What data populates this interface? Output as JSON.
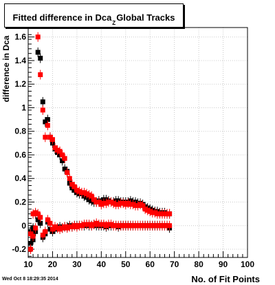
{
  "title": {
    "before": "Fitted difference in Dca",
    "sub": "Z",
    "after": "Global Tracks"
  },
  "ylabel": "difference in Dca",
  "xlabel": "No. of Fit Points",
  "datestamp": "Wed Oct  8 18:29:35 2014",
  "colors": {
    "series_a": "#000000",
    "series_b": "#ff0000",
    "grid": "#c8c8c8",
    "axis": "#000000"
  },
  "chart_data": {
    "type": "scatter",
    "title": "Fitted difference in Dca_Z Global Tracks",
    "xlabel": "No. of Fit Points",
    "ylabel": "difference in Dca",
    "xlim": [
      10,
      100
    ],
    "ylim": [
      -0.27,
      1.68
    ],
    "x_ticks": [
      10,
      20,
      30,
      40,
      50,
      60,
      70,
      80,
      90,
      100
    ],
    "y_ticks": [
      -0.2,
      0,
      0.2,
      0.4,
      0.6,
      0.8,
      1,
      1.2,
      1.4,
      1.6
    ],
    "grid": true,
    "legend": "none",
    "series": [
      {
        "color": "#000000",
        "points": [
          [
            11,
            -0.05
          ],
          [
            12,
            -0.02
          ],
          [
            13,
            -0.05
          ],
          [
            14,
            1.47
          ],
          [
            15,
            1.42
          ],
          [
            16,
            1.05
          ],
          [
            17,
            0.88
          ],
          [
            18,
            0.9
          ],
          [
            19,
            0.75
          ],
          [
            20,
            0.7
          ],
          [
            21,
            0.65
          ],
          [
            22,
            0.62
          ],
          [
            23,
            0.6
          ],
          [
            24,
            0.55
          ],
          [
            25,
            0.48
          ],
          [
            26,
            0.46
          ],
          [
            27,
            0.36
          ],
          [
            28,
            0.32
          ],
          [
            29,
            0.3
          ],
          [
            30,
            0.28
          ],
          [
            31,
            0.27
          ],
          [
            32,
            0.27
          ],
          [
            33,
            0.25
          ],
          [
            34,
            0.24
          ],
          [
            35,
            0.22
          ],
          [
            36,
            0.21
          ],
          [
            37,
            0.2
          ],
          [
            38,
            0.2
          ],
          [
            39,
            0.21
          ],
          [
            40,
            0.2
          ],
          [
            41,
            0.22
          ],
          [
            42,
            0.22
          ],
          [
            43,
            0.21
          ],
          [
            44,
            0.2
          ],
          [
            45,
            0.2
          ],
          [
            46,
            0.21
          ],
          [
            47,
            0.21
          ],
          [
            48,
            0.2
          ],
          [
            49,
            0.2
          ],
          [
            50,
            0.2
          ],
          [
            51,
            0.2
          ],
          [
            52,
            0.21
          ],
          [
            53,
            0.2
          ],
          [
            54,
            0.2
          ],
          [
            55,
            0.19
          ],
          [
            56,
            0.19
          ],
          [
            57,
            0.18
          ],
          [
            58,
            0.16
          ],
          [
            59,
            0.15
          ],
          [
            60,
            0.14
          ],
          [
            61,
            0.13
          ],
          [
            62,
            0.12
          ],
          [
            63,
            0.12
          ],
          [
            64,
            0.11
          ],
          [
            65,
            0.11
          ],
          [
            66,
            0.11
          ],
          [
            67,
            0.1
          ],
          [
            68,
            0.1
          ],
          [
            11,
            -0.15
          ],
          [
            12,
            -0.12
          ],
          [
            13,
            0.1
          ],
          [
            14,
            0.05
          ],
          [
            15,
            0.02
          ],
          [
            16,
            -0.1
          ],
          [
            17,
            -0.07
          ],
          [
            18,
            0.03
          ],
          [
            19,
            -0.03
          ],
          [
            20,
            -0.05
          ],
          [
            21,
            -0.03
          ],
          [
            22,
            -0.02
          ],
          [
            23,
            -0.01
          ],
          [
            24,
            -0.02
          ],
          [
            25,
            -0.01
          ],
          [
            26,
            -0.01
          ],
          [
            27,
            0.0
          ],
          [
            28,
            -0.01
          ],
          [
            29,
            0.0
          ],
          [
            30,
            0.0
          ],
          [
            31,
            0.0
          ],
          [
            32,
            0.0
          ],
          [
            33,
            0.0
          ],
          [
            34,
            0.01
          ],
          [
            35,
            0.0
          ],
          [
            36,
            0.0
          ],
          [
            37,
            0.01
          ],
          [
            38,
            0.0
          ],
          [
            39,
            0.0
          ],
          [
            40,
            0.0
          ],
          [
            41,
            0.0
          ],
          [
            42,
            -0.01
          ],
          [
            43,
            0.0
          ],
          [
            44,
            0.0
          ],
          [
            45,
            0.0
          ],
          [
            46,
            0.0
          ],
          [
            47,
            -0.01
          ],
          [
            48,
            0.0
          ],
          [
            49,
            0.0
          ],
          [
            50,
            0.0
          ],
          [
            51,
            0.0
          ],
          [
            52,
            0.0
          ],
          [
            53,
            0.0
          ],
          [
            54,
            0.0
          ],
          [
            55,
            0.0
          ],
          [
            56,
            0.0
          ],
          [
            57,
            0.0
          ],
          [
            58,
            0.0
          ],
          [
            59,
            0.0
          ],
          [
            60,
            0.0
          ],
          [
            61,
            0.0
          ],
          [
            62,
            0.0
          ],
          [
            63,
            0.0
          ],
          [
            64,
            0.0
          ],
          [
            65,
            0.0
          ],
          [
            66,
            0.0
          ],
          [
            67,
            0.0
          ],
          [
            68,
            -0.02
          ]
        ]
      },
      {
        "color": "#ff0000",
        "points": [
          [
            11,
            -0.07
          ],
          [
            12,
            -0.09
          ],
          [
            13,
            0.11
          ],
          [
            14,
            1.6
          ],
          [
            15,
            1.28
          ],
          [
            16,
            0.98
          ],
          [
            17,
            0.75
          ],
          [
            18,
            0.85
          ],
          [
            19,
            0.75
          ],
          [
            20,
            0.73
          ],
          [
            21,
            0.66
          ],
          [
            22,
            0.64
          ],
          [
            23,
            0.63
          ],
          [
            24,
            0.6
          ],
          [
            25,
            0.57
          ],
          [
            26,
            0.45
          ],
          [
            27,
            0.4
          ],
          [
            28,
            0.35
          ],
          [
            29,
            0.33
          ],
          [
            30,
            0.3
          ],
          [
            31,
            0.29
          ],
          [
            32,
            0.28
          ],
          [
            33,
            0.28
          ],
          [
            34,
            0.27
          ],
          [
            35,
            0.26
          ],
          [
            36,
            0.25
          ],
          [
            37,
            0.22
          ],
          [
            38,
            0.2
          ],
          [
            39,
            0.2
          ],
          [
            40,
            0.18
          ],
          [
            41,
            0.19
          ],
          [
            42,
            0.19
          ],
          [
            43,
            0.2
          ],
          [
            44,
            0.2
          ],
          [
            45,
            0.19
          ],
          [
            46,
            0.18
          ],
          [
            47,
            0.18
          ],
          [
            48,
            0.19
          ],
          [
            49,
            0.19
          ],
          [
            50,
            0.18
          ],
          [
            51,
            0.19
          ],
          [
            52,
            0.18
          ],
          [
            53,
            0.18
          ],
          [
            54,
            0.17
          ],
          [
            55,
            0.17
          ],
          [
            56,
            0.18
          ],
          [
            57,
            0.17
          ],
          [
            58,
            0.14
          ],
          [
            59,
            0.13
          ],
          [
            60,
            0.12
          ],
          [
            61,
            0.11
          ],
          [
            62,
            0.11
          ],
          [
            63,
            0.1
          ],
          [
            64,
            0.1
          ],
          [
            65,
            0.1
          ],
          [
            66,
            0.1
          ],
          [
            67,
            0.1
          ],
          [
            68,
            0.1
          ],
          [
            11,
            -0.2
          ],
          [
            12,
            0.1
          ],
          [
            13,
            -0.02
          ],
          [
            14,
            0.1
          ],
          [
            15,
            0.07
          ],
          [
            16,
            -0.08
          ],
          [
            17,
            -0.05
          ],
          [
            18,
            0.05
          ],
          [
            19,
            0.02
          ],
          [
            20,
            -0.03
          ],
          [
            21,
            -0.01
          ],
          [
            22,
            -0.02
          ],
          [
            23,
            -0.03
          ],
          [
            24,
            -0.02
          ],
          [
            25,
            -0.01
          ],
          [
            26,
            -0.02
          ],
          [
            27,
            -0.01
          ],
          [
            28,
            -0.01
          ],
          [
            29,
            0.0
          ],
          [
            30,
            -0.01
          ],
          [
            31,
            0.0
          ],
          [
            32,
            0.0
          ],
          [
            33,
            0.01
          ],
          [
            34,
            0.01
          ],
          [
            35,
            0.01
          ],
          [
            36,
            0.0
          ],
          [
            37,
            0.01
          ],
          [
            38,
            0.02
          ],
          [
            39,
            0.01
          ],
          [
            40,
            0.01
          ],
          [
            41,
            0.01
          ],
          [
            42,
            0.0
          ],
          [
            43,
            0.01
          ],
          [
            44,
            0.01
          ],
          [
            45,
            0.0
          ],
          [
            46,
            0.0
          ],
          [
            47,
            0.0
          ],
          [
            48,
            0.0
          ],
          [
            49,
            0.0
          ],
          [
            50,
            0.0
          ],
          [
            51,
            0.0
          ],
          [
            52,
            0.0
          ],
          [
            53,
            0.0
          ],
          [
            54,
            0.0
          ],
          [
            55,
            0.0
          ],
          [
            56,
            0.0
          ],
          [
            57,
            0.0
          ],
          [
            58,
            0.0
          ],
          [
            59,
            0.0
          ],
          [
            60,
            0.0
          ],
          [
            61,
            0.0
          ],
          [
            62,
            0.0
          ],
          [
            63,
            0.0
          ],
          [
            64,
            0.0
          ],
          [
            65,
            0.0
          ],
          [
            66,
            0.0
          ],
          [
            67,
            0.0
          ],
          [
            68,
            0.0
          ]
        ]
      }
    ]
  }
}
